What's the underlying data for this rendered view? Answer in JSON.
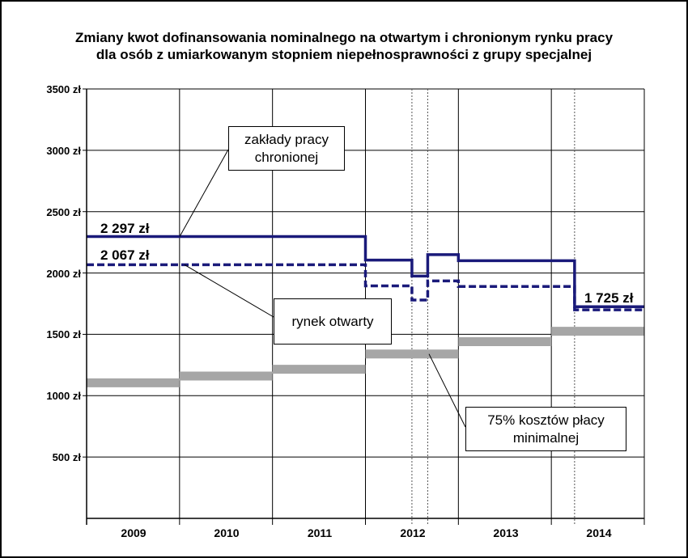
{
  "chart_data": {
    "type": "line",
    "title_lines": [
      "Zmiany kwot dofinansowania nominalnego na otwartym i chronionym rynku pracy",
      "dla osób z umiarkowanym stopniem niepełnosprawności z grupy specjalnej"
    ],
    "categories": [
      "2009",
      "2010",
      "2011",
      "2012",
      "2013",
      "2014"
    ],
    "y_ticks": [
      "500 zł",
      "1000 zł",
      "1500 zł",
      "2000 zł",
      "2500 zł",
      "3000 zł",
      "3500 zł"
    ],
    "ylim": [
      0,
      3500
    ],
    "series": [
      {
        "name": "zakłady pracy chronionej",
        "color": "#1a1a7a",
        "style": "solid",
        "steps": [
          [
            2009.0,
            2297
          ],
          [
            2012.0,
            2105
          ],
          [
            2012.5,
            1975
          ],
          [
            2012.67,
            2150
          ],
          [
            2013.0,
            2100
          ],
          [
            2014.25,
            1725
          ]
        ]
      },
      {
        "name": "rynek otwarty",
        "color": "#1a1a7a",
        "style": "dashed",
        "steps": [
          [
            2009.0,
            2067
          ],
          [
            2012.0,
            1895
          ],
          [
            2012.5,
            1780
          ],
          [
            2012.67,
            1935
          ],
          [
            2013.0,
            1890
          ],
          [
            2014.25,
            1700
          ]
        ]
      },
      {
        "name": "75% kosztów płacy minimalnej",
        "color": "#a6a6a6",
        "style": "thick",
        "steps": [
          [
            2009.0,
            1105
          ],
          [
            2010.0,
            1160
          ],
          [
            2011.0,
            1215
          ],
          [
            2012.0,
            1340
          ],
          [
            2013.0,
            1440
          ],
          [
            2014.0,
            1525
          ]
        ]
      }
    ],
    "value_labels": [
      "2 297 zł",
      "2 067 zł",
      "1 725 zł"
    ],
    "callouts": [
      {
        "lines": [
          "zakłady pracy",
          "chronionej"
        ]
      },
      {
        "lines": [
          "rynek otwarty"
        ]
      },
      {
        "lines": [
          "75% kosztów płacy",
          "minimalnej"
        ]
      }
    ],
    "dotted_markers": [
      2012.5,
      2012.67,
      2014.25
    ],
    "grid": true,
    "legend": "callouts"
  }
}
